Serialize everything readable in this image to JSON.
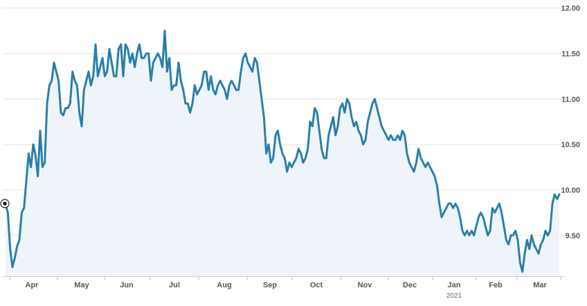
{
  "colors": {
    "line": "#2a7fa8",
    "area": "#eef4f9",
    "grid": "#e2e2e2",
    "text": "#555555"
  },
  "chart_data": {
    "type": "area",
    "title": "",
    "xlabel": "",
    "ylabel": "",
    "ylim": [
      9.05,
      12.05
    ],
    "y_ticks": [
      "12.00",
      "11.50",
      "11.00",
      "10.50",
      "10.00",
      "9.50"
    ],
    "y_tick_values": [
      12.0,
      11.5,
      11.0,
      10.5,
      10.0,
      9.5
    ],
    "x_tick_labels": [
      "Apr",
      "May",
      "Jun",
      "Jul",
      "Aug",
      "Sep",
      "Oct",
      "Nov",
      "Dec",
      "Jan",
      "Feb",
      "Mar"
    ],
    "year_label": "2021",
    "grid": true,
    "start_marker": true,
    "series": [
      {
        "values": [
          9.85,
          9.75,
          9.35,
          9.15,
          9.25,
          9.38,
          9.45,
          9.75,
          9.8,
          10.1,
          10.4,
          10.25,
          10.5,
          10.38,
          10.15,
          10.65,
          10.25,
          10.3,
          10.95,
          11.15,
          11.2,
          11.4,
          11.3,
          11.2,
          10.85,
          10.82,
          10.9,
          10.9,
          10.95,
          11.3,
          11.2,
          11.15,
          10.85,
          10.7,
          11.1,
          11.2,
          11.3,
          11.15,
          11.25,
          11.6,
          11.25,
          11.35,
          11.45,
          11.25,
          11.3,
          11.55,
          11.4,
          11.25,
          11.25,
          11.55,
          11.6,
          11.25,
          11.6,
          11.55,
          11.4,
          11.5,
          11.35,
          11.5,
          11.6,
          11.45,
          11.45,
          11.5,
          11.5,
          11.2,
          11.4,
          11.45,
          11.5,
          11.45,
          11.35,
          11.75,
          11.3,
          11.45,
          11.1,
          11.15,
          11.15,
          11.4,
          11.2,
          11.1,
          10.95,
          10.95,
          10.85,
          10.95,
          11.15,
          11.05,
          11.1,
          11.15,
          11.3,
          11.3,
          11.1,
          11.25,
          11.1,
          11.05,
          11.15,
          11.2,
          11.15,
          11.1,
          11.0,
          11.15,
          11.2,
          11.15,
          11.1,
          11.1,
          11.3,
          11.45,
          11.5,
          11.4,
          11.35,
          11.3,
          11.45,
          11.4,
          11.2,
          11.0,
          10.8,
          10.4,
          10.5,
          10.3,
          10.35,
          10.6,
          10.65,
          10.5,
          10.4,
          10.35,
          10.2,
          10.3,
          10.25,
          10.3,
          10.35,
          10.45,
          10.4,
          10.3,
          10.35,
          10.45,
          10.75,
          10.7,
          10.9,
          10.85,
          10.65,
          10.45,
          10.35,
          10.35,
          10.6,
          10.7,
          10.8,
          10.6,
          10.7,
          10.9,
          10.95,
          10.85,
          11.0,
          10.95,
          10.8,
          10.7,
          10.75,
          10.65,
          10.6,
          10.5,
          10.55,
          10.75,
          10.85,
          10.95,
          11.0,
          10.9,
          10.8,
          10.7,
          10.65,
          10.6,
          10.55,
          10.6,
          10.55,
          10.55,
          10.6,
          10.55,
          10.65,
          10.6,
          10.4,
          10.3,
          10.25,
          10.2,
          10.3,
          10.45,
          10.35,
          10.3,
          10.25,
          10.3,
          10.25,
          10.2,
          10.15,
          10.05,
          9.85,
          9.7,
          9.75,
          9.8,
          9.85,
          9.85,
          9.8,
          9.85,
          9.8,
          9.7,
          9.55,
          9.5,
          9.55,
          9.5,
          9.55,
          9.5,
          9.6,
          9.7,
          9.75,
          9.7,
          9.6,
          9.5,
          9.55,
          9.8,
          9.75,
          9.8,
          9.85,
          9.75,
          9.6,
          9.45,
          9.4,
          9.5,
          9.5,
          9.55,
          9.45,
          9.2,
          9.1,
          9.3,
          9.45,
          9.35,
          9.5,
          9.4,
          9.35,
          9.3,
          9.4,
          9.45,
          9.55,
          9.5,
          9.55,
          9.85,
          9.95,
          9.9,
          9.95
        ]
      }
    ]
  }
}
